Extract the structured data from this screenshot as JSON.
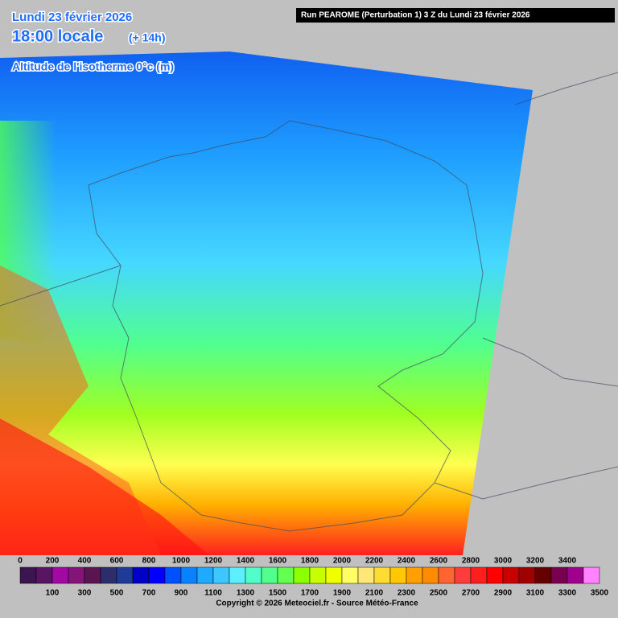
{
  "header": {
    "date": "Lundi 23 février 2026",
    "time": "18:00 locale",
    "offset": "(+ 14h)",
    "parameter": "Altitude de l'isotherme 0°c (m)",
    "run": "Run PEAROME (Perturbation 1) 3 Z du Lundi 23 février 2026"
  },
  "legend": {
    "levels": [
      0,
      100,
      200,
      300,
      400,
      500,
      600,
      700,
      800,
      900,
      1000,
      1100,
      1200,
      1300,
      1400,
      1500,
      1600,
      1700,
      1800,
      1900,
      2000,
      2100,
      2200,
      2300,
      2400,
      2500,
      2600,
      2700,
      2800,
      2900,
      3000,
      3100,
      3200,
      3300,
      3400,
      3500
    ],
    "colors": [
      "#3c1450",
      "#5a1464",
      "#a00aa0",
      "#82147a",
      "#5a1450",
      "#2d2d6e",
      "#1e3c96",
      "#0000c8",
      "#0000ff",
      "#0050ff",
      "#0a82ff",
      "#1eaaff",
      "#3cc8ff",
      "#5af0ff",
      "#50ffc8",
      "#50ff8c",
      "#64ff50",
      "#8cff00",
      "#c8ff00",
      "#f0ff00",
      "#ffff64",
      "#ffe678",
      "#ffdc32",
      "#ffc800",
      "#ffa000",
      "#ff8c00",
      "#ff6432",
      "#ff3c3c",
      "#ff1e1e",
      "#ff0000",
      "#c80000",
      "#a00000",
      "#640000",
      "#780050",
      "#a0008c",
      "#ff82ff"
    ]
  },
  "footer": {
    "copyright": "Copyright © 2026 Meteociel.fr - Source Météo-France"
  }
}
